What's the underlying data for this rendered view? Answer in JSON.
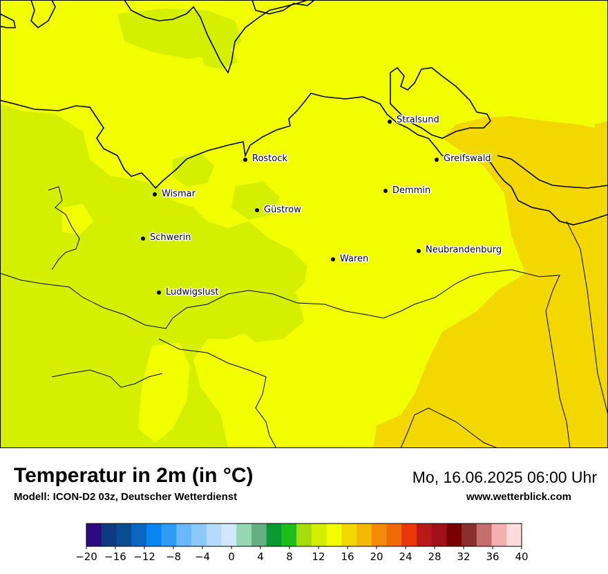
{
  "title": "Temperatur in 2m (in °C)",
  "subtitle": "Modell: ICON-D2 03z, Deutscher Wetterdienst",
  "datetime": "Mo, 16.06.2025 06:00 Uhr",
  "website": "www.wetterblick.com",
  "cities": [
    {
      "name": "Stralsund"
    },
    {
      "name": "Rostock"
    },
    {
      "name": "Greifswald"
    },
    {
      "name": "Wismar"
    },
    {
      "name": "Demmin"
    },
    {
      "name": "Güstrow"
    },
    {
      "name": "Schwerin"
    },
    {
      "name": "Neubrandenburg"
    },
    {
      "name": "Waren"
    },
    {
      "name": "Ludwigslust"
    }
  ],
  "colorbar": {
    "ticks": [
      "−20",
      "−16",
      "−12",
      "−8",
      "−4",
      "0",
      "4",
      "8",
      "12",
      "16",
      "20",
      "24",
      "28",
      "32",
      "36",
      "40"
    ],
    "colors": [
      "#2e0a80",
      "#0e3a80",
      "#0a4c90",
      "#0a66c0",
      "#0a84f0",
      "#2e9bf5",
      "#6ab8fb",
      "#8ec8fb",
      "#b4dafc",
      "#d2e8fc",
      "#96d8b4",
      "#66ad84",
      "#0a9a30",
      "#1ebe1a",
      "#a6dc0a",
      "#d4f000",
      "#f2ff00",
      "#f2d800",
      "#f4b800",
      "#f48a0a",
      "#f06a0a",
      "#e8380a",
      "#b81a1a",
      "#a0101a",
      "#7a0000",
      "#8c2e2e",
      "#c46e6e",
      "#f4b0b0",
      "#ffdcdc"
    ]
  }
}
